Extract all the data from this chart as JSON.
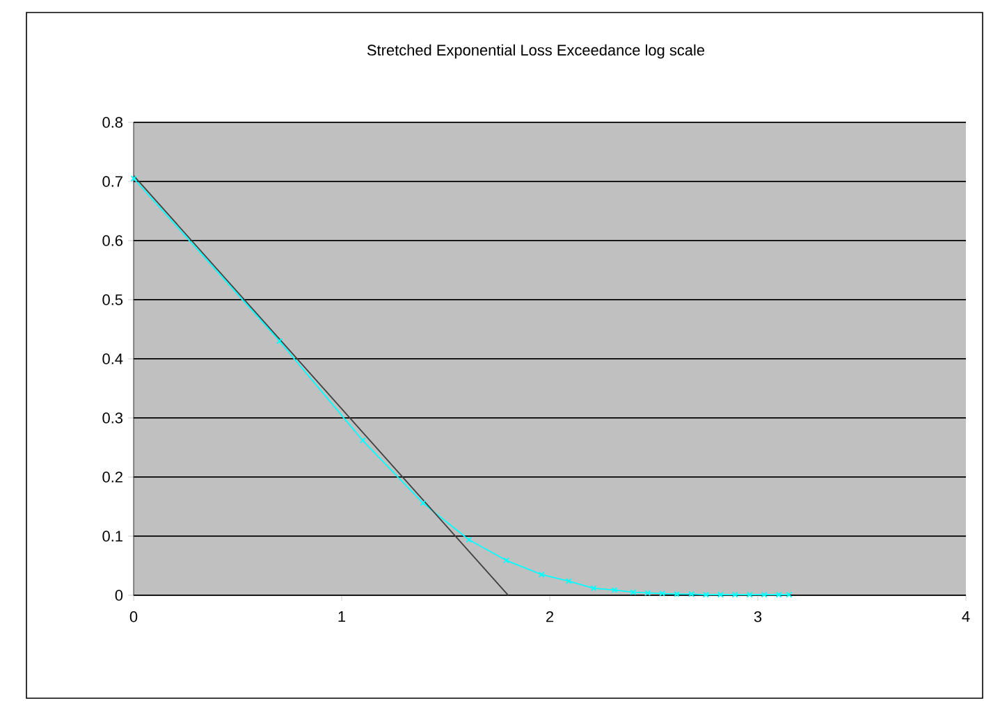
{
  "chart_data": {
    "type": "line",
    "title": "Stretched Exponential Loss Exceedance log scale",
    "xlim": [
      0,
      4
    ],
    "xticks": [
      0,
      1,
      2,
      3,
      4
    ],
    "ylim": [
      0,
      0.8
    ],
    "yticks": [
      0,
      0.1,
      0.2,
      0.3,
      0.4,
      0.5,
      0.6,
      0.7,
      0.8
    ],
    "grid": "y",
    "series": [
      {
        "color": "#00ffff",
        "marker": "cross",
        "x": [
          0,
          0.7,
          1.1,
          1.39,
          1.61,
          1.79,
          1.96,
          2.09,
          2.21,
          2.31,
          2.4,
          2.47,
          2.54,
          2.61,
          2.68,
          2.75,
          2.82,
          2.89,
          2.96,
          3.03,
          3.1,
          3.15
        ],
        "values": [
          0.705,
          0.43,
          0.262,
          0.156,
          0.094,
          0.059,
          0.035,
          0.024,
          0.012,
          0.009,
          0.005,
          0.004,
          0.003,
          0.002,
          0.002,
          0.001,
          0.001,
          0.001,
          0.001,
          0.001,
          0.001,
          0.001
        ]
      },
      {
        "color": "#404040",
        "marker": "none",
        "x": [
          0,
          1.8
        ],
        "values": [
          0.71,
          0
        ]
      }
    ]
  }
}
